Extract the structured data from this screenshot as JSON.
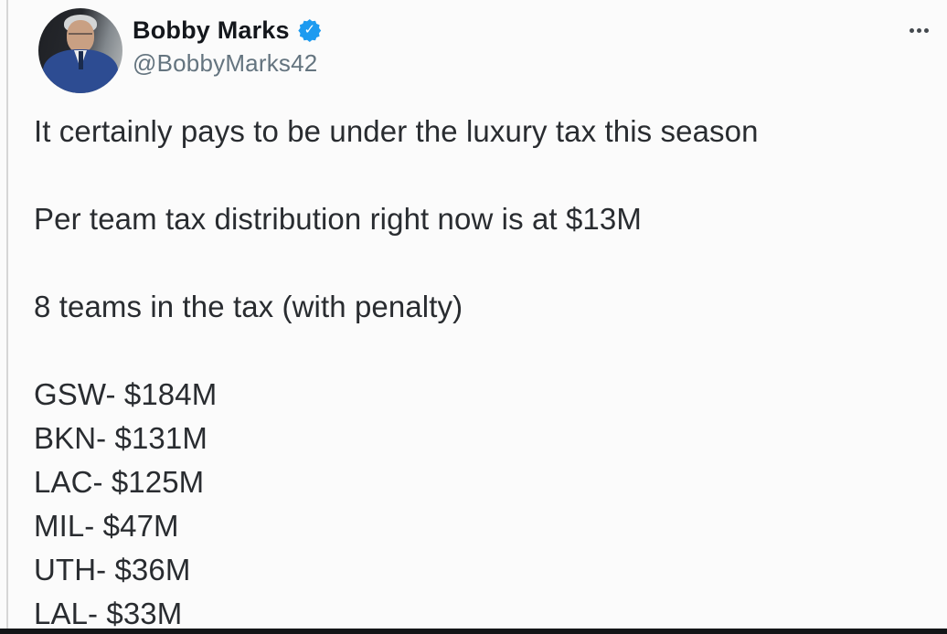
{
  "colors": {
    "badge_blue": "#1d9bf0"
  },
  "icons": {
    "verified_badge": "✓",
    "more_menu": "more-options-ellipsis"
  },
  "tweet": {
    "author": {
      "name": "Bobby Marks",
      "handle": "@BobbyMarks42"
    },
    "paragraphs": [
      "It certainly pays to be under the luxury tax this season",
      "Per team tax distribution right now is at $13M",
      "8 teams in the tax (with penalty)"
    ],
    "tax_list": [
      "GSW- $184M",
      "BKN- $131M",
      "LAC- $125M",
      "MIL- $47M",
      "UTH- $36M",
      "LAL- $33M"
    ]
  }
}
